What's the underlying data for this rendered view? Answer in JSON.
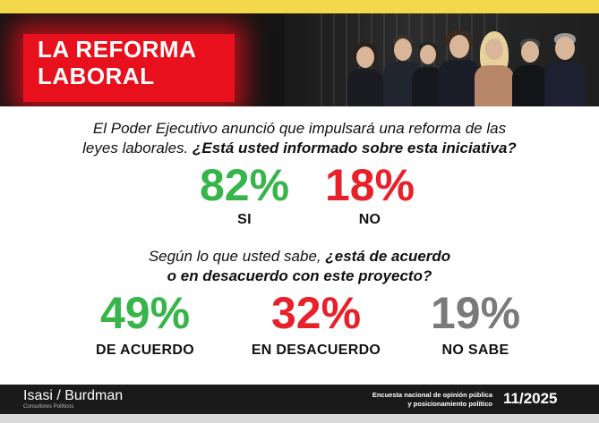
{
  "header": {
    "title_line1": "LA REFORMA",
    "title_line2": "LABORAL"
  },
  "question1": {
    "text_plain": "El Poder Ejecutivo anunció que impulsará una reforma de las",
    "text_line2_plain": "leyes laborales. ",
    "text_line2_bold": "¿Está usted informado sobre esta iniciativa?"
  },
  "question2": {
    "line1_plain": "Según lo que usted sabe, ",
    "line1_bold": "¿está de acuerdo",
    "line2_bold": "o en desacuerdo con este proyecto?"
  },
  "colors": {
    "green": "#37b44a",
    "red": "#e8202a",
    "gray": "#7a7a7a",
    "accent_yellow": "#f2d84a"
  },
  "chart_data": [
    {
      "type": "table",
      "categories": [
        "SI",
        "NO"
      ],
      "values": [
        82,
        18
      ],
      "display": [
        "82%",
        "18%"
      ],
      "colors": [
        "#37b44a",
        "#e8202a"
      ]
    },
    {
      "type": "table",
      "categories": [
        "DE ACUERDO",
        "EN DESACUERDO",
        "NO SABE"
      ],
      "values": [
        49,
        32,
        19
      ],
      "display": [
        "49%",
        "32%",
        "19%"
      ],
      "colors": [
        "#37b44a",
        "#e8202a",
        "#7a7a7a"
      ]
    }
  ],
  "footer": {
    "brand": "Isasi / Burdman",
    "brand_sub": "Consultores Políticos",
    "survey_line1": "Encuesta nacional de opinión pública",
    "survey_line2": "y posicionamiento político",
    "date": "11/2025"
  }
}
